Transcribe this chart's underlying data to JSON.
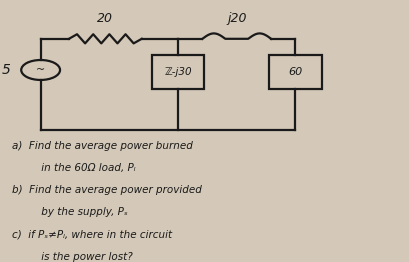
{
  "bg_color": "#d4c9b8",
  "text_color": "#1a1a1a",
  "questions": [
    "a)  Find the average power burned",
    "         in the 60Ω load, Pₗ",
    "b)  Find the average power provided",
    "         by the supply, Pₛ",
    "c)  if Pₛ≠Pₗ, where in the circuit",
    "         is the power lost?"
  ]
}
